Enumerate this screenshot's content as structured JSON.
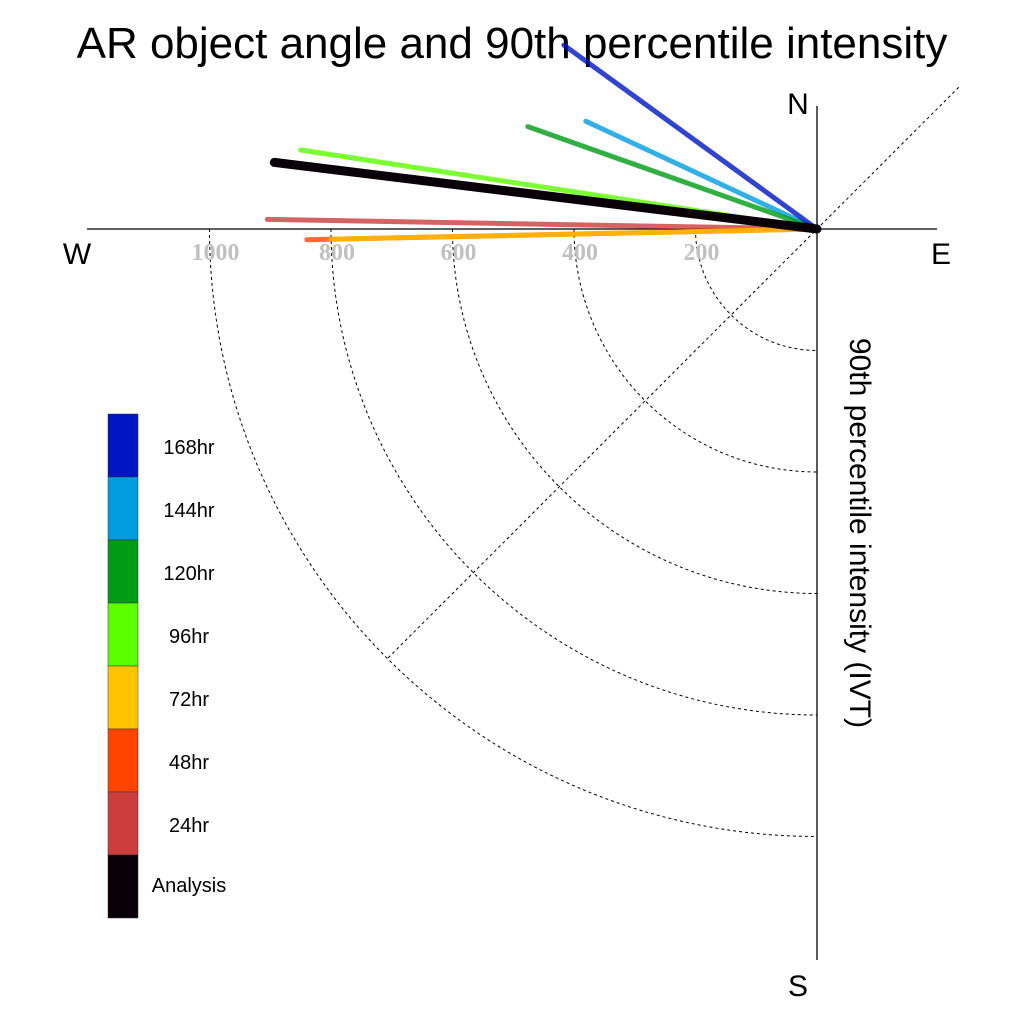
{
  "chart_data": {
    "type": "polar-line",
    "title": "AR object angle and 90th percentile intensity",
    "ylabel": "90th percentile intensity (IVT)",
    "compass": {
      "north": "N",
      "south": "S",
      "east": "E",
      "west": "W"
    },
    "radial_ticks": [
      "200",
      "400",
      "600",
      "800",
      "1000"
    ],
    "radial_tick_values": [
      200,
      400,
      600,
      800,
      1000
    ],
    "rmax": 1200,
    "series": [
      {
        "name": "24hr",
        "color": "#cc3d3d",
        "angle_deg": 181.0,
        "intensity": 905
      },
      {
        "name": "48hr",
        "color": "#ff4400",
        "angle_deg": 178.8,
        "intensity": 840
      },
      {
        "name": "72hr",
        "color": "#ffc400",
        "angle_deg": 178.8,
        "intensity": 800
      },
      {
        "name": "144hr",
        "color": "#009ce0",
        "angle_deg": 205.0,
        "intensity": 420
      },
      {
        "name": "120hr",
        "color": "#009c15",
        "angle_deg": 199.5,
        "intensity": 505
      },
      {
        "name": "96hr",
        "color": "#5bff00",
        "angle_deg": 188.7,
        "intensity": 860
      },
      {
        "name": "168hr",
        "color": "#0015c4",
        "angle_deg": 216.0,
        "intensity": 515
      },
      {
        "name": "Analysis",
        "color": "#0a0008",
        "angle_deg": 187.0,
        "intensity": 900
      }
    ],
    "legend": [
      {
        "label": "168hr",
        "color": "#0015c4"
      },
      {
        "label": "144hr",
        "color": "#009ce0"
      },
      {
        "label": "120hr",
        "color": "#009c15"
      },
      {
        "label": "96hr",
        "color": "#5bff00"
      },
      {
        "label": "72hr",
        "color": "#ffc400"
      },
      {
        "label": "48hr",
        "color": "#ff4400"
      },
      {
        "label": "24hr",
        "color": "#cc3d3d"
      },
      {
        "label": "Analysis",
        "color": "#0a0008"
      }
    ],
    "legend_placement": "bottom-left"
  }
}
